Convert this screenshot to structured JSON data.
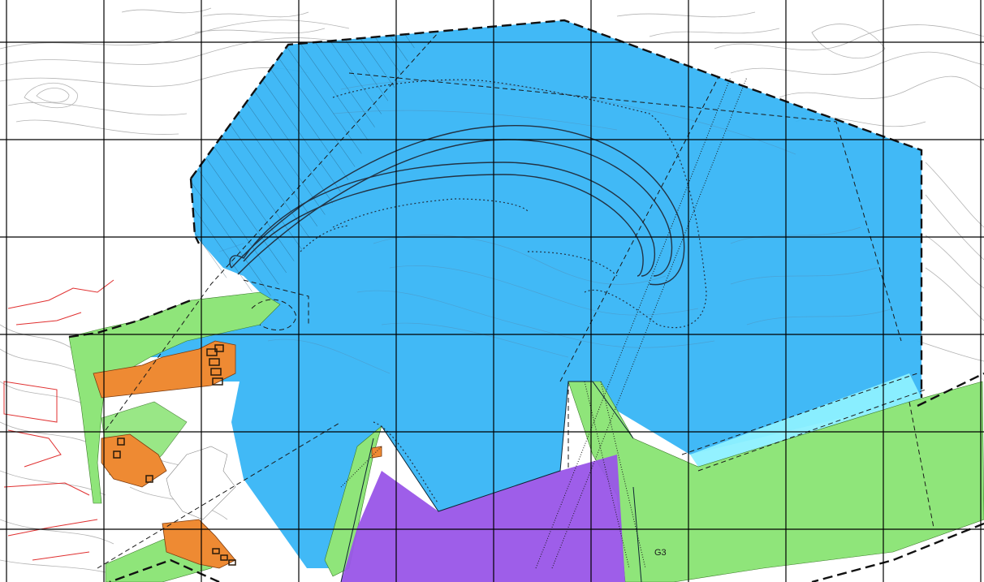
{
  "map": {
    "type": "zoning plan map over topographic base",
    "zones": [
      {
        "id": "sea",
        "color": "#33b4f5"
      },
      {
        "id": "green",
        "color": "#8fe57a"
      },
      {
        "id": "orange",
        "color": "#ee8a33"
      },
      {
        "id": "purple",
        "color": "#9955e8"
      },
      {
        "id": "cyan",
        "color": "#8df0ff"
      }
    ],
    "contour_color": "#8a8a8a",
    "grid_color": "#000000",
    "boundary_style": "heavy dashed black",
    "labels": {
      "g3": "G3"
    }
  }
}
